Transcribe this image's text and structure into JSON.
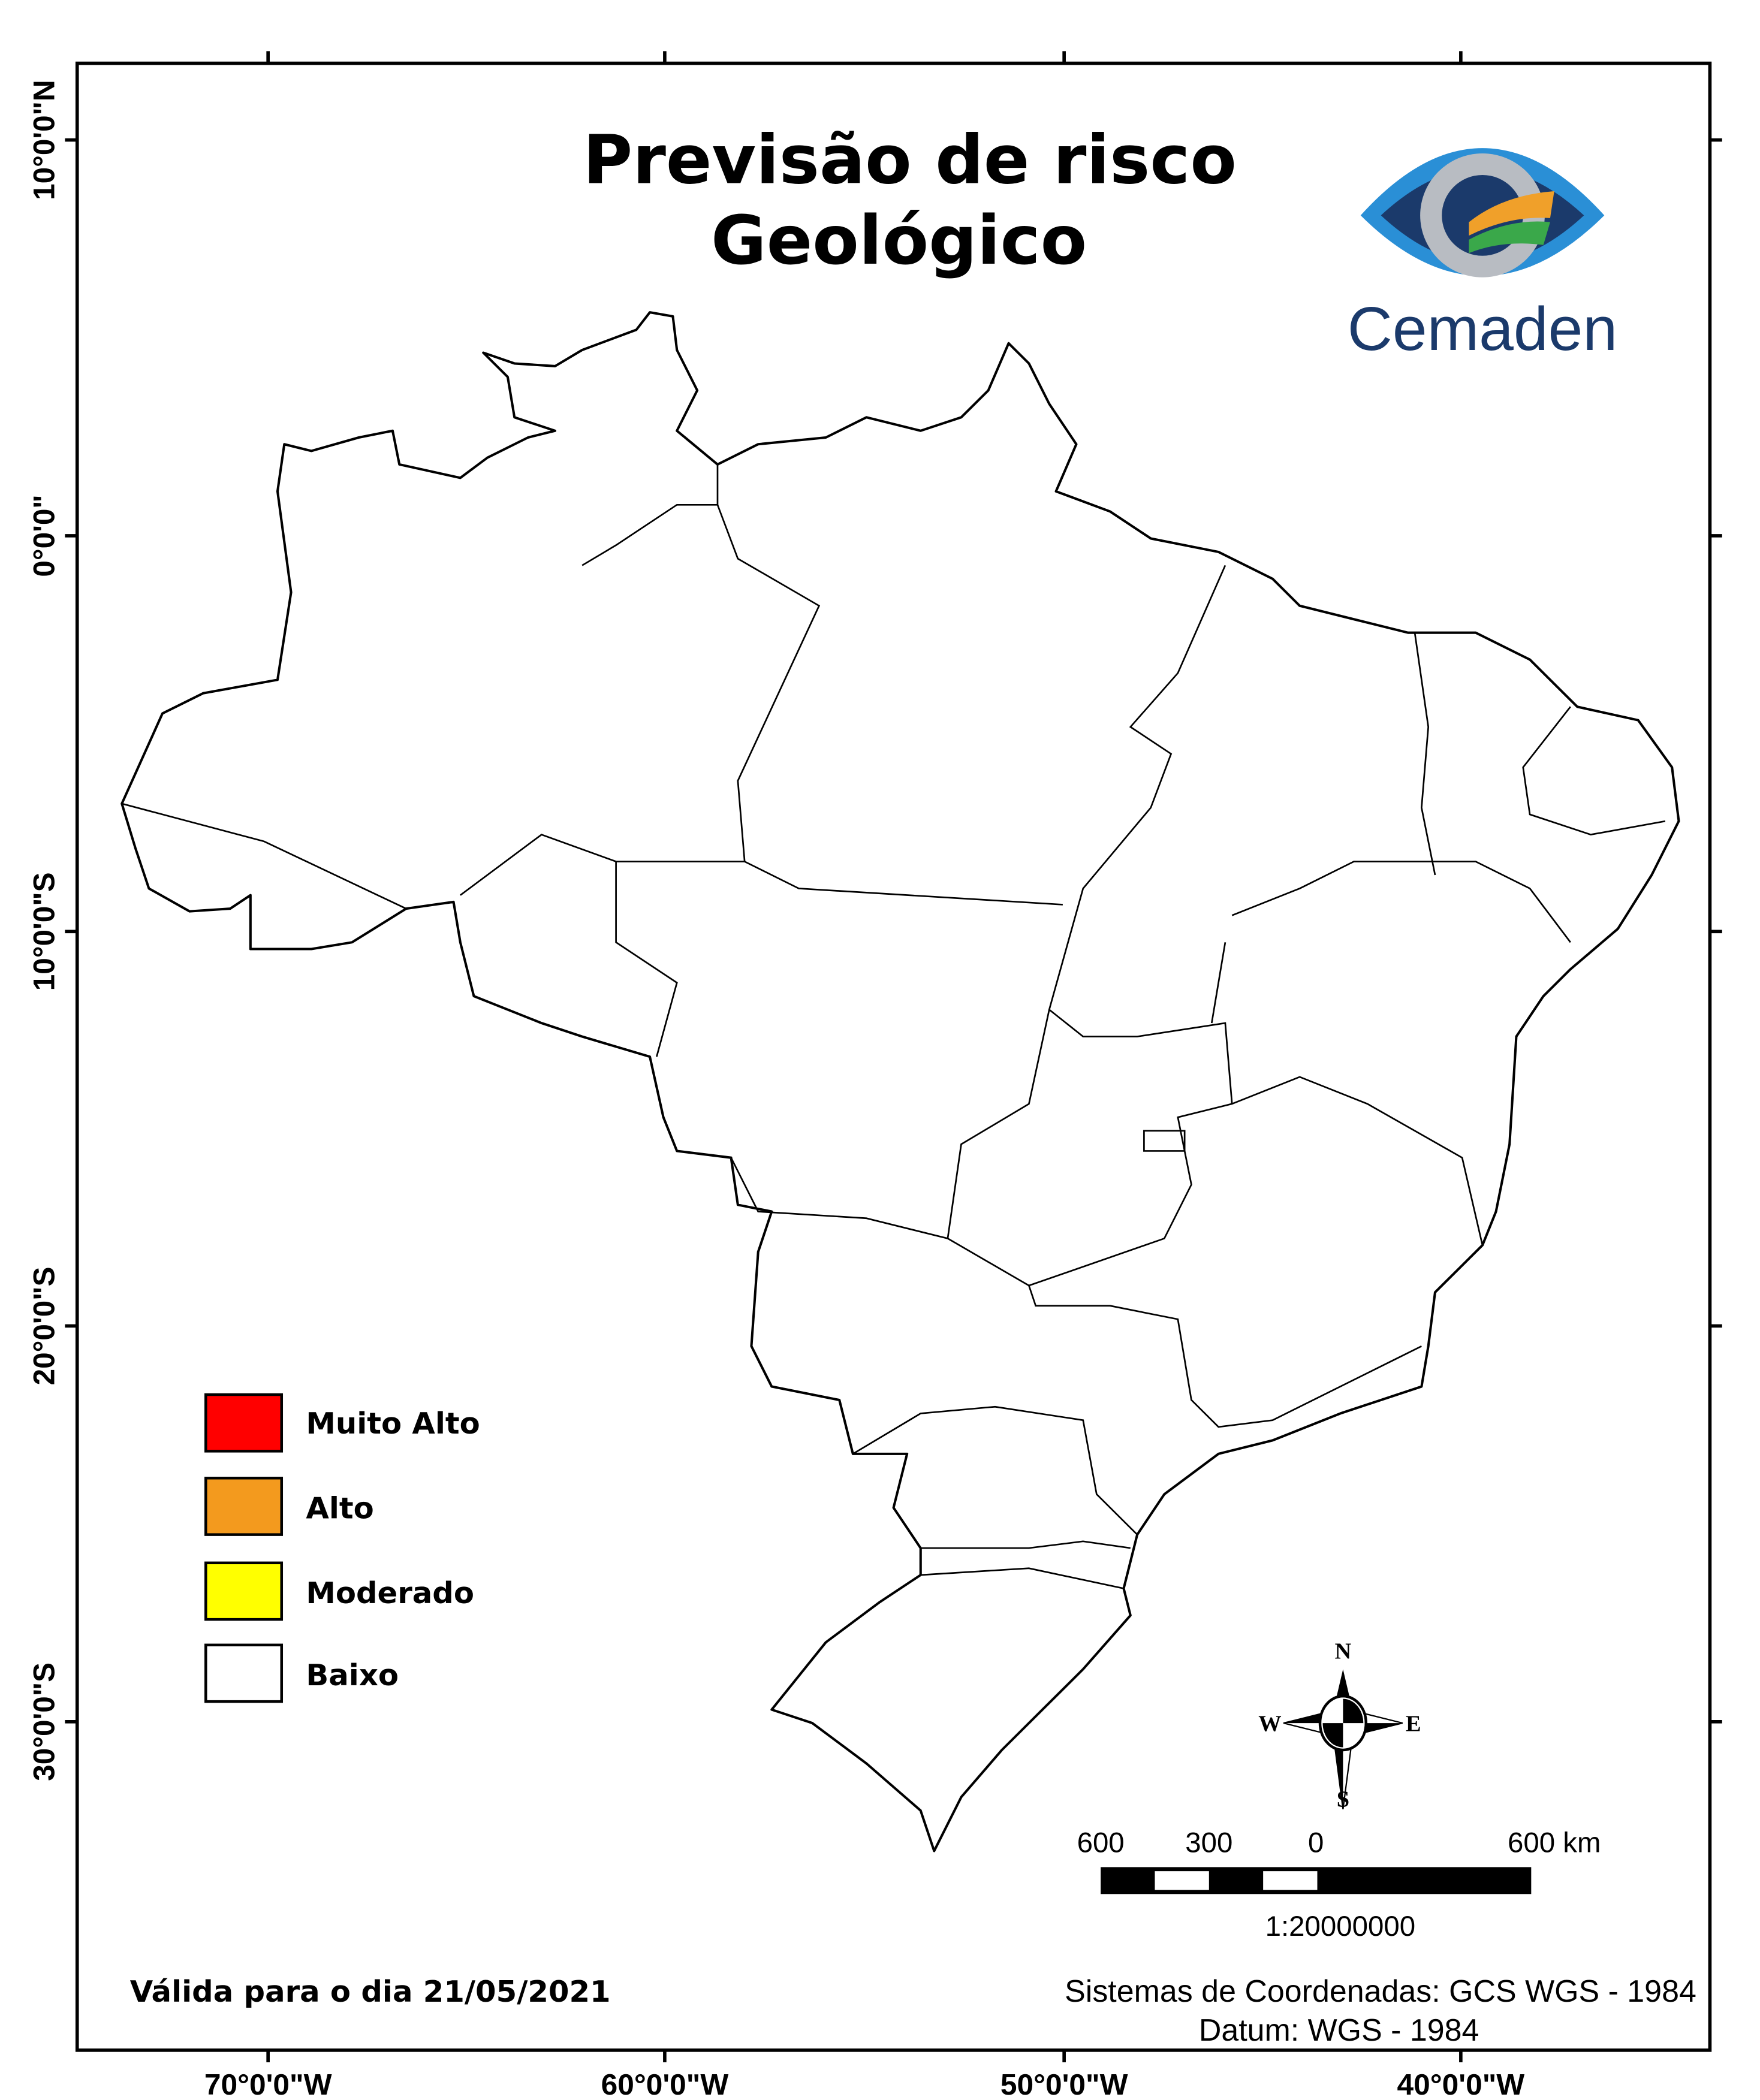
{
  "title": {
    "line1": "Previsão de risco",
    "line2": "Geológico"
  },
  "logo": {
    "text": "Cemaden",
    "colors": {
      "navy": "#1b3a6b",
      "blue": "#2a8fd6",
      "orange": "#f0a02a",
      "green": "#3aa84a"
    }
  },
  "axes": {
    "longitude_labels": [
      "70°0'0\"W",
      "60°0'0\"W",
      "50°0'0\"W",
      "40°0'0\"W"
    ],
    "latitude_labels": [
      "10°0'0\"N",
      "0°0'0\"",
      "10°0'0\"S",
      "20°0'0\"S",
      "30°0'0\"S"
    ]
  },
  "legend": [
    {
      "label": "Muito Alto",
      "color": "#ff0000"
    },
    {
      "label": "Alto",
      "color": "#f39a1e"
    },
    {
      "label": "Moderado",
      "color": "#ffff00"
    },
    {
      "label": "Baixo",
      "color": "#ffffff"
    }
  ],
  "compass": {
    "n": "N",
    "s": "S",
    "e": "E",
    "w": "W"
  },
  "scale_bar": {
    "labels": [
      "600",
      "300",
      "0",
      "600 km"
    ],
    "ratio": "1:20000000"
  },
  "footer": {
    "valid_date": "Válida para o dia 21/05/2021",
    "crs": "Sistemas de Coordenadas: GCS WGS - 1984",
    "datum": "Datum: WGS - 1984"
  }
}
